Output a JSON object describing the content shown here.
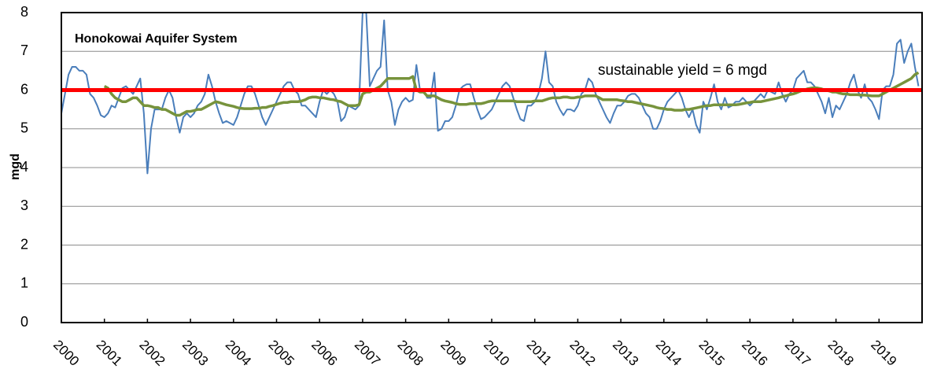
{
  "chart_data": {
    "type": "line",
    "title": "Honokowai Aquifer System",
    "ylabel": "mgd",
    "annotation": "sustainable yield = 6 mgd",
    "reference_line": {
      "value": 6,
      "color": "#ff0000"
    },
    "ylim": [
      0,
      8
    ],
    "yticks": [
      0,
      1,
      2,
      3,
      4,
      5,
      6,
      7,
      8
    ],
    "grid": true,
    "categories": [
      "2000",
      null,
      null,
      null,
      null,
      null,
      null,
      null,
      null,
      null,
      null,
      null,
      "2001",
      null,
      null,
      null,
      null,
      null,
      null,
      null,
      null,
      null,
      null,
      null,
      "2002",
      null,
      null,
      null,
      null,
      null,
      null,
      null,
      null,
      null,
      null,
      null,
      "2003",
      null,
      null,
      null,
      null,
      null,
      null,
      null,
      null,
      null,
      null,
      null,
      "2004",
      null,
      null,
      null,
      null,
      null,
      null,
      null,
      null,
      null,
      null,
      null,
      "2005",
      null,
      null,
      null,
      null,
      null,
      null,
      null,
      null,
      null,
      null,
      null,
      "2006",
      null,
      null,
      null,
      null,
      null,
      null,
      null,
      null,
      null,
      null,
      null,
      "2007",
      null,
      null,
      null,
      null,
      null,
      null,
      null,
      null,
      null,
      null,
      null,
      "2008",
      null,
      null,
      null,
      null,
      null,
      null,
      null,
      null,
      null,
      null,
      null,
      "2009",
      null,
      null,
      null,
      null,
      null,
      null,
      null,
      null,
      null,
      null,
      null,
      "2010",
      null,
      null,
      null,
      null,
      null,
      null,
      null,
      null,
      null,
      null,
      null,
      "2011",
      null,
      null,
      null,
      null,
      null,
      null,
      null,
      null,
      null,
      null,
      null,
      "2012",
      null,
      null,
      null,
      null,
      null,
      null,
      null,
      null,
      null,
      null,
      null,
      "2013",
      null,
      null,
      null,
      null,
      null,
      null,
      null,
      null,
      null,
      null,
      null,
      "2014",
      null,
      null,
      null,
      null,
      null,
      null,
      null,
      null,
      null,
      null,
      null,
      "2015",
      null,
      null,
      null,
      null,
      null,
      null,
      null,
      null,
      null,
      null,
      null,
      "2016",
      null,
      null,
      null,
      null,
      null,
      null,
      null,
      null,
      null,
      null,
      null,
      "2017",
      null,
      null,
      null,
      null,
      null,
      null,
      null,
      null,
      null,
      null,
      null,
      "2018",
      null,
      null,
      null,
      null,
      null,
      null,
      null,
      null,
      null,
      null,
      null,
      "2019",
      null,
      null,
      null,
      null,
      null,
      null,
      null,
      null,
      null,
      null,
      null
    ],
    "series": [
      {
        "color": "#4a7ebb",
        "values": [
          5.4,
          5.9,
          6.4,
          6.6,
          6.6,
          6.5,
          6.5,
          6.4,
          5.9,
          5.8,
          5.6,
          5.35,
          5.3,
          5.4,
          5.6,
          5.55,
          5.8,
          6.05,
          6.1,
          6.0,
          5.9,
          6.1,
          6.3,
          5.4,
          3.85,
          5.0,
          5.5,
          5.5,
          5.5,
          5.8,
          6.0,
          5.8,
          5.3,
          4.9,
          5.3,
          5.4,
          5.3,
          5.4,
          5.6,
          5.7,
          5.9,
          6.4,
          6.1,
          5.7,
          5.4,
          5.15,
          5.2,
          5.15,
          5.1,
          5.3,
          5.6,
          5.9,
          6.1,
          6.1,
          5.9,
          5.6,
          5.3,
          5.1,
          5.3,
          5.5,
          5.7,
          5.9,
          6.1,
          6.2,
          6.2,
          6.0,
          5.9,
          5.6,
          5.6,
          5.5,
          5.4,
          5.3,
          5.7,
          6.0,
          5.9,
          6.0,
          5.9,
          5.7,
          5.2,
          5.3,
          5.6,
          5.55,
          5.5,
          5.6,
          8.0,
          8.0,
          6.1,
          6.3,
          6.5,
          6.6,
          7.8,
          6.0,
          5.7,
          5.1,
          5.5,
          5.7,
          5.8,
          5.7,
          5.75,
          6.65,
          6.0,
          6.0,
          5.8,
          5.8,
          6.45,
          4.95,
          5.0,
          5.2,
          5.2,
          5.3,
          5.6,
          6.0,
          6.1,
          6.15,
          6.15,
          5.8,
          5.5,
          5.25,
          5.3,
          5.4,
          5.5,
          5.7,
          5.9,
          6.1,
          6.2,
          6.1,
          5.8,
          5.5,
          5.25,
          5.2,
          5.6,
          5.6,
          5.7,
          5.9,
          6.3,
          7.0,
          6.2,
          6.1,
          5.7,
          5.5,
          5.35,
          5.5,
          5.5,
          5.45,
          5.6,
          5.9,
          6.0,
          6.3,
          6.2,
          5.9,
          5.7,
          5.5,
          5.3,
          5.15,
          5.4,
          5.6,
          5.6,
          5.7,
          5.85,
          5.9,
          5.9,
          5.8,
          5.6,
          5.4,
          5.3,
          5.0,
          5.0,
          5.2,
          5.5,
          5.7,
          5.8,
          5.9,
          6.0,
          5.8,
          5.5,
          5.3,
          5.5,
          5.1,
          4.9,
          5.7,
          5.5,
          5.8,
          6.15,
          5.7,
          5.5,
          5.8,
          5.55,
          5.6,
          5.7,
          5.7,
          5.8,
          5.7,
          5.6,
          5.7,
          5.8,
          5.9,
          5.8,
          6.0,
          5.95,
          5.9,
          6.2,
          5.9,
          5.7,
          5.9,
          6.0,
          6.3,
          6.4,
          6.5,
          6.2,
          6.2,
          6.1,
          5.9,
          5.7,
          5.4,
          5.8,
          5.3,
          5.6,
          5.5,
          5.7,
          5.9,
          6.2,
          6.4,
          6.0,
          5.8,
          6.15,
          5.8,
          5.7,
          5.5,
          5.25,
          6.0,
          6.1,
          6.1,
          6.4,
          7.2,
          7.3,
          6.7,
          7.0,
          7.2,
          6.6,
          6.1
        ]
      },
      {
        "color": "#77933c",
        "values": [
          null,
          null,
          null,
          null,
          null,
          null,
          null,
          null,
          null,
          null,
          null,
          null,
          6.1,
          6.05,
          5.9,
          5.8,
          5.75,
          5.7,
          5.7,
          5.75,
          5.8,
          5.8,
          5.7,
          5.6,
          5.6,
          5.58,
          5.55,
          5.55,
          5.5,
          5.5,
          5.45,
          5.4,
          5.35,
          5.35,
          5.4,
          5.45,
          5.45,
          5.47,
          5.5,
          5.5,
          5.55,
          5.6,
          5.65,
          5.7,
          5.68,
          5.65,
          5.62,
          5.6,
          5.58,
          5.55,
          5.53,
          5.52,
          5.52,
          5.52,
          5.53,
          5.53,
          5.55,
          5.55,
          5.58,
          5.6,
          5.63,
          5.66,
          5.68,
          5.68,
          5.7,
          5.7,
          5.7,
          5.72,
          5.75,
          5.8,
          5.82,
          5.82,
          5.8,
          5.8,
          5.78,
          5.76,
          5.75,
          5.72,
          5.7,
          5.65,
          5.6,
          5.6,
          5.6,
          5.62,
          5.9,
          5.95,
          5.95,
          6.0,
          6.05,
          6.1,
          6.2,
          6.3,
          6.3,
          6.3,
          6.3,
          6.3,
          6.3,
          6.3,
          6.35,
          6.0,
          5.95,
          5.95,
          5.85,
          5.85,
          5.85,
          5.8,
          5.75,
          5.72,
          5.7,
          5.68,
          5.65,
          5.63,
          5.63,
          5.63,
          5.65,
          5.65,
          5.65,
          5.65,
          5.67,
          5.7,
          5.72,
          5.72,
          5.72,
          5.72,
          5.72,
          5.72,
          5.72,
          5.7,
          5.7,
          5.7,
          5.7,
          5.7,
          5.72,
          5.72,
          5.72,
          5.75,
          5.78,
          5.8,
          5.8,
          5.8,
          5.82,
          5.82,
          5.8,
          5.8,
          5.82,
          5.82,
          5.85,
          5.85,
          5.85,
          5.85,
          5.8,
          5.75,
          5.75,
          5.75,
          5.75,
          5.75,
          5.73,
          5.72,
          5.7,
          5.7,
          5.68,
          5.66,
          5.64,
          5.62,
          5.6,
          5.58,
          5.55,
          5.53,
          5.52,
          5.5,
          5.5,
          5.48,
          5.48,
          5.48,
          5.5,
          5.5,
          5.52,
          5.54,
          5.56,
          5.58,
          5.6,
          5.6,
          5.62,
          5.62,
          5.62,
          5.62,
          5.62,
          5.62,
          5.62,
          5.63,
          5.65,
          5.67,
          5.68,
          5.7,
          5.7,
          5.7,
          5.72,
          5.74,
          5.76,
          5.78,
          5.8,
          5.83,
          5.85,
          5.88,
          5.9,
          5.93,
          5.97,
          6.0,
          6.03,
          6.05,
          6.06,
          6.05,
          6.03,
          6.0,
          5.98,
          5.95,
          5.95,
          5.92,
          5.9,
          5.9,
          5.88,
          5.88,
          5.88,
          5.87,
          5.87,
          5.86,
          5.85,
          5.85,
          5.85,
          5.9,
          5.95,
          6.0,
          6.05,
          6.1,
          6.15,
          6.2,
          6.25,
          6.3,
          6.4,
          6.45
        ]
      }
    ]
  }
}
